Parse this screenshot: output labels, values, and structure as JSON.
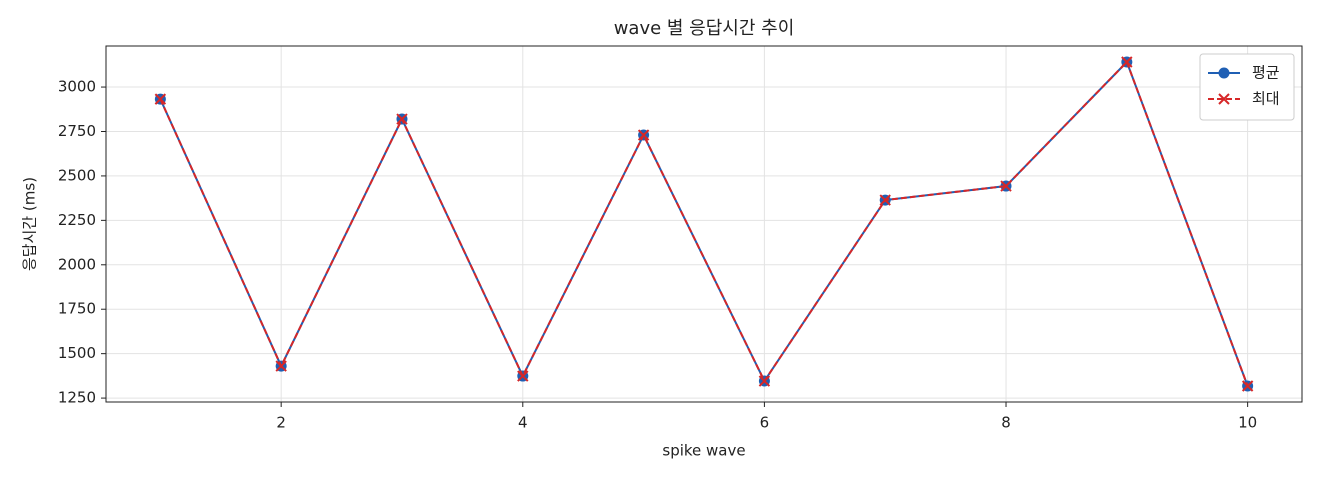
{
  "chart_data": {
    "type": "line",
    "title": "wave 별 응답시간 추이",
    "xlabel": "spike wave",
    "ylabel": "응답시간 (ms)",
    "x": [
      1,
      2,
      3,
      4,
      5,
      6,
      7,
      8,
      9,
      10
    ],
    "series": [
      {
        "name": "평균",
        "color": "#1f5fb4",
        "marker": "o",
        "linestyle": "solid",
        "values": [
          2932,
          1430,
          2820,
          1374,
          2730,
          1346,
          2364,
          2443,
          3141,
          1318
        ]
      },
      {
        "name": "최대",
        "color": "#d62728",
        "marker": "x",
        "linestyle": "dashed",
        "values": [
          2932,
          1430,
          2820,
          1374,
          2730,
          1346,
          2364,
          2443,
          3141,
          1318
        ]
      }
    ],
    "xlim": [
      0.55,
      10.45
    ],
    "xticks": [
      2,
      4,
      6,
      8,
      10
    ],
    "ylim": [
      1228,
      3231
    ],
    "yticks": [
      1250,
      1500,
      1750,
      2000,
      2250,
      2500,
      2750,
      3000
    ],
    "grid": true,
    "legend": "upper right"
  }
}
